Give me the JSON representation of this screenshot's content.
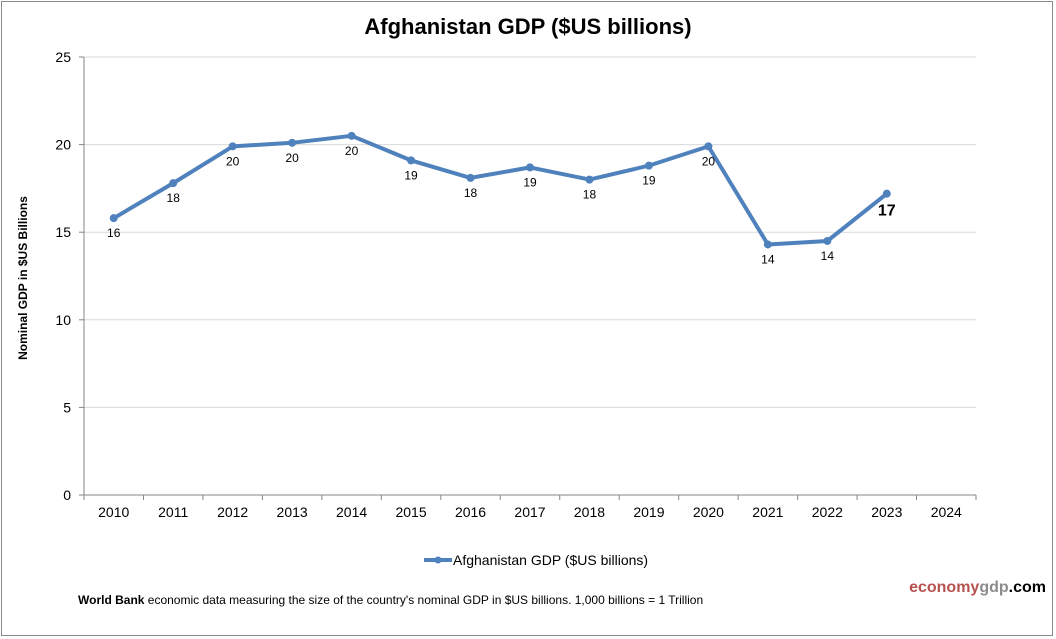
{
  "chart_data": {
    "type": "line",
    "title": "Afghanistan GDP ($US billions)",
    "xlabel": "",
    "ylabel": "Nominal GDP in $US  Billions",
    "ylim": [
      0,
      25
    ],
    "yticks": [
      0,
      5,
      10,
      15,
      20,
      25
    ],
    "grid": true,
    "categories": [
      "2010",
      "2011",
      "2012",
      "2013",
      "2014",
      "2015",
      "2016",
      "2017",
      "2018",
      "2019",
      "2020",
      "2021",
      "2022",
      "2023",
      "2024"
    ],
    "series": [
      {
        "name": "Afghanistan GDP ($US billions)",
        "color": "#4f81bd",
        "values": [
          15.8,
          17.8,
          19.9,
          20.1,
          20.5,
          19.1,
          18.1,
          18.7,
          18.0,
          18.8,
          19.9,
          14.3,
          14.5,
          17.2,
          null
        ],
        "data_labels": [
          "16",
          "18",
          "20",
          "20",
          "20",
          "19",
          "18",
          "19",
          "18",
          "19",
          "20",
          "14",
          "14",
          "17"
        ]
      }
    ],
    "legend_position": "bottom"
  },
  "footnote": {
    "source": "World Bank",
    "text": " economic data  measuring the size of the country's nominal GDP in $US billions. 1,000 billions = 1 Trillion"
  },
  "brand": {
    "part1": "economy",
    "part2": "gdp",
    "part3": ".com"
  }
}
